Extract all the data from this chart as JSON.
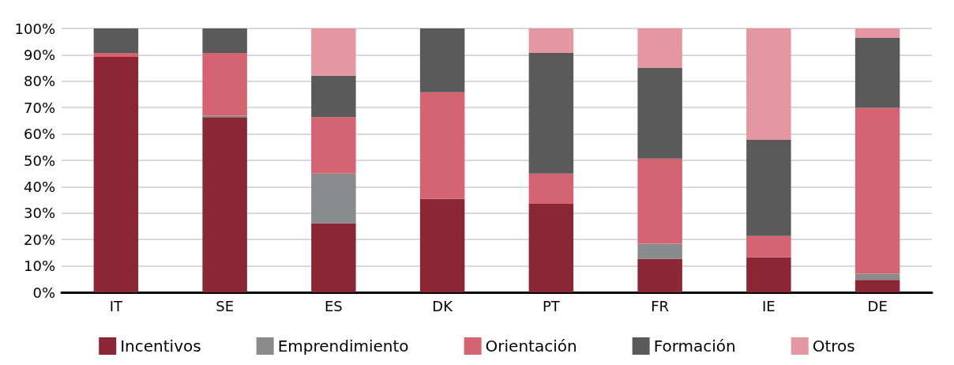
{
  "chart_data": {
    "type": "bar",
    "stacked": true,
    "categories": [
      "IT",
      "SE",
      "ES",
      "DK",
      "PT",
      "FR",
      "IE",
      "DE"
    ],
    "series": [
      {
        "name": "Incentivos",
        "color": "#8b2635",
        "values": [
          89.2,
          66.4,
          26.2,
          35.4,
          33.5,
          12.7,
          13.3,
          4.7
        ]
      },
      {
        "name": "Emprendimiento",
        "color": "#898a8c",
        "values": [
          0,
          0.6,
          18.8,
          0,
          0,
          5.7,
          0,
          2.3
        ]
      },
      {
        "name": "Orientación",
        "color": "#d46472",
        "values": [
          1.5,
          23.7,
          21.4,
          40.4,
          11.5,
          32.3,
          8,
          62.9
        ]
      },
      {
        "name": "Formación",
        "color": "#5a5a5a",
        "values": [
          9.3,
          9.3,
          15.7,
          24.2,
          45.7,
          34.3,
          36.5,
          26.5
        ]
      },
      {
        "name": "Otros",
        "color": "#e497a0",
        "values": [
          0,
          0,
          17.9,
          0,
          9.3,
          15,
          42.2,
          3.6
        ]
      }
    ],
    "ylim": [
      0,
      100
    ],
    "yticks": [
      {
        "value": 0,
        "label": "0%"
      },
      {
        "value": 10,
        "label": "10%"
      },
      {
        "value": 20,
        "label": "20%"
      },
      {
        "value": 30,
        "label": "30%"
      },
      {
        "value": 40,
        "label": "40%"
      },
      {
        "value": 50,
        "label": "50%"
      },
      {
        "value": 60,
        "label": "60%"
      },
      {
        "value": 70,
        "label": "70%"
      },
      {
        "value": 80,
        "label": "80%"
      },
      {
        "value": 90,
        "label": "90%"
      },
      {
        "value": 100,
        "label": "100%"
      }
    ],
    "grid": "y",
    "legend": "bottom"
  }
}
